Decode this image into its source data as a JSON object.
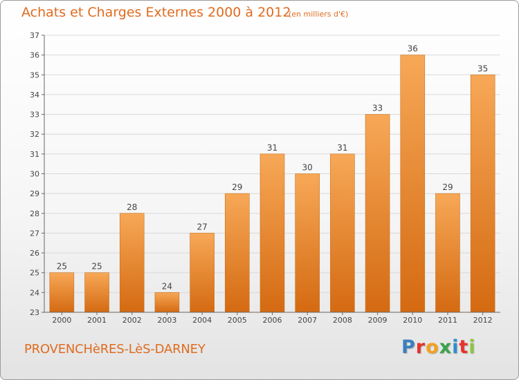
{
  "header": {
    "title": "Achats et Charges Externes 2000 à 2012",
    "subtitle": "(en milliers d'€)"
  },
  "footer": {
    "commune": "PROVENCHèRES-LèS-DARNEY",
    "logo_letters": [
      "P",
      "r",
      "o",
      "x",
      "i",
      "t",
      "i"
    ],
    "logo_colors": [
      "#3a7fc1",
      "#e8322c",
      "#f4a11e",
      "#3aa34a",
      "#2a8fd0",
      "#e8322c",
      "#8cc63f"
    ]
  },
  "colors": {
    "bar_top": "#f7a857",
    "bar_bottom": "#d46a12",
    "bar_edge": "#c9701f",
    "grid": "#d8d8d8",
    "axis": "#666666",
    "label": "#444444"
  },
  "chart_data": {
    "type": "bar",
    "title": "Achats et Charges Externes 2000 à 2012",
    "subtitle": "(en milliers d'€)",
    "categories": [
      "2000",
      "2001",
      "2002",
      "2003",
      "2004",
      "2005",
      "2006",
      "2007",
      "2008",
      "2009",
      "2010",
      "2011",
      "2012"
    ],
    "values": [
      25,
      25,
      28,
      24,
      27,
      29,
      31,
      30,
      31,
      33,
      36,
      29,
      35
    ],
    "ylim": [
      23,
      37
    ],
    "yticks": [
      23,
      24,
      25,
      26,
      27,
      28,
      29,
      30,
      31,
      32,
      33,
      34,
      35,
      36,
      37
    ],
    "grid": true,
    "xlabel": "",
    "ylabel": ""
  }
}
